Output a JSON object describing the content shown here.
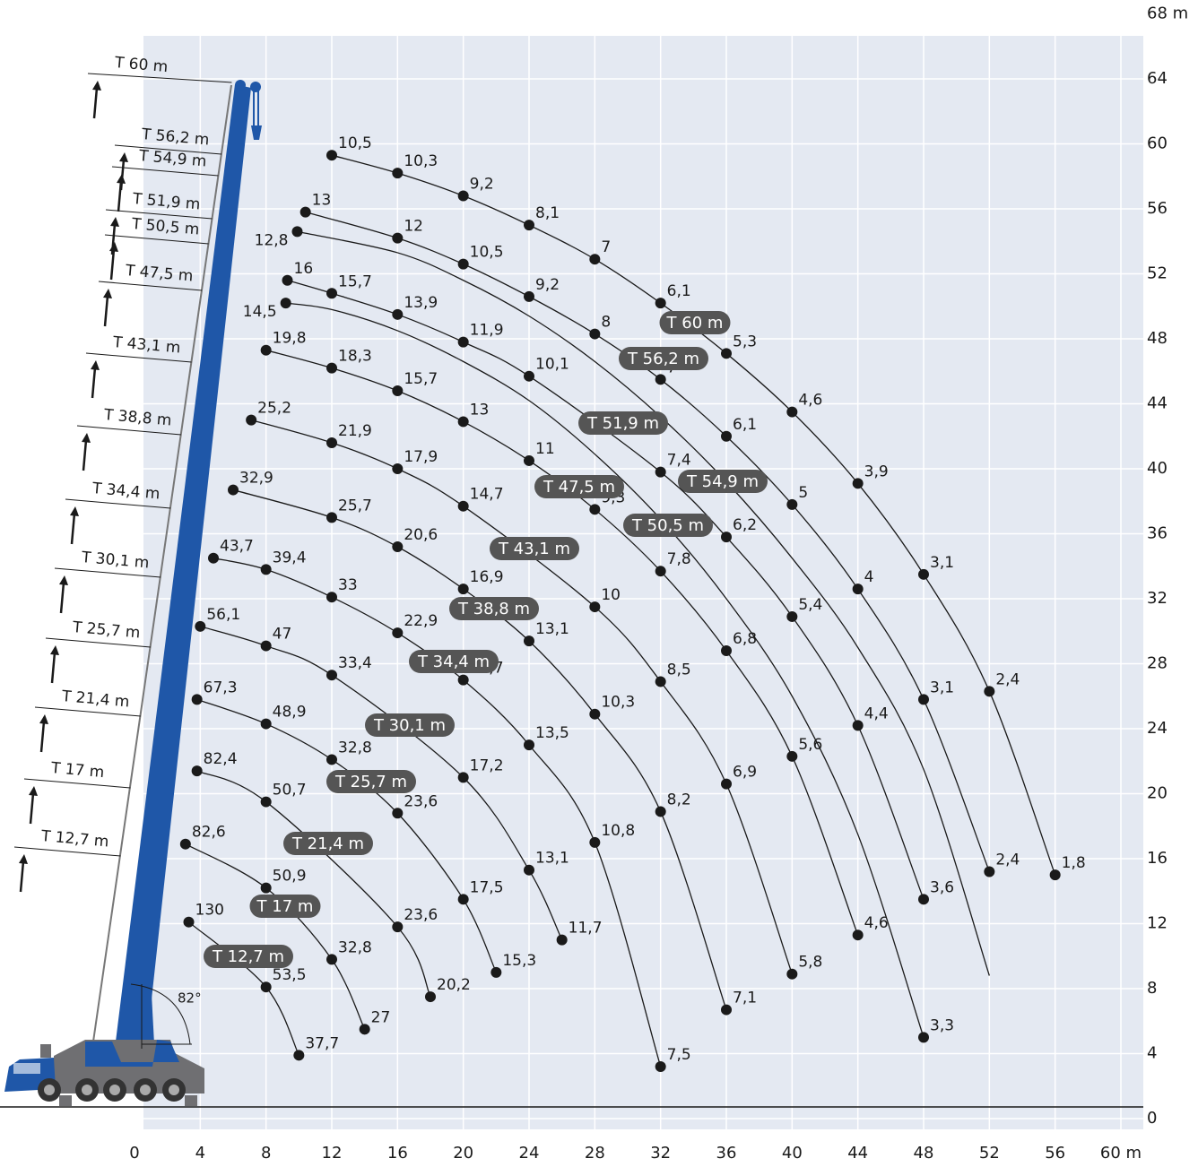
{
  "chart_data": {
    "type": "line",
    "color": "#1a1a1a",
    "grid": true,
    "xlim": [
      0,
      60
    ],
    "ylim": [
      0,
      68
    ],
    "xticks": [
      0,
      4,
      8,
      12,
      16,
      20,
      24,
      28,
      32,
      36,
      40,
      44,
      48,
      52,
      56,
      {
        "value": 60,
        "label": "60 m"
      }
    ],
    "yticks": [
      0,
      4,
      8,
      12,
      16,
      20,
      24,
      28,
      32,
      36,
      40,
      44,
      48,
      52,
      56,
      60,
      64,
      {
        "value": 68,
        "label": "68 m"
      }
    ],
    "annotation": "82°",
    "series": [
      {
        "name": "T 60 m",
        "x": [
          12,
          16,
          20,
          24,
          28,
          32,
          36,
          40,
          44,
          48,
          52,
          56
        ],
        "y": [
          59.3,
          58.2,
          56.8,
          55.0,
          52.9,
          50.2,
          47.1,
          43.5,
          39.1,
          33.5,
          26.3,
          15.0
        ],
        "values": [
          10.5,
          10.3,
          9.2,
          8.1,
          7,
          6.1,
          5.3,
          4.6,
          3.9,
          3.1,
          2.4,
          1.8
        ],
        "value_labels": [
          "10,5",
          "10,3",
          "9,2",
          "8,1",
          "7",
          "6,1",
          "5,3",
          "4,6",
          "3,9",
          "3,1",
          "2,4",
          "1,8"
        ]
      },
      {
        "name": "T 56,2 m",
        "x": [
          10.4,
          16,
          20,
          24,
          28,
          32,
          36,
          40,
          44,
          48,
          52
        ],
        "y": [
          55.8,
          54.2,
          52.6,
          50.6,
          48.3,
          45.5,
          42.0,
          37.8,
          32.6,
          25.8,
          15.2
        ],
        "values": [
          13,
          12,
          10.5,
          9.2,
          8,
          7,
          6.1,
          5,
          4,
          3.1,
          2.4
        ],
        "value_labels": [
          "13",
          "12",
          "10,5",
          "9,2",
          "8",
          "7",
          "6,1",
          "5",
          "4",
          "3,1",
          "2,4"
        ]
      },
      {
        "name": "T 54,9 m",
        "x": [
          9.9,
          16,
          20,
          24,
          28,
          32,
          36,
          40,
          44,
          48,
          52
        ],
        "y": [
          54.6,
          53.3,
          51.6,
          49.4,
          46.6,
          43.2,
          39.2,
          34.5,
          29.0,
          21.5,
          8.8
        ],
        "values": [
          12.8,
          null,
          null,
          null,
          null,
          null,
          null,
          null,
          null,
          null,
          null
        ],
        "value_labels": [
          "12,8",
          null,
          null,
          null,
          null,
          null,
          null,
          null,
          null,
          null,
          null
        ]
      },
      {
        "name": "T 51,9 m",
        "x": [
          9.3,
          12,
          16,
          20,
          24,
          32,
          36,
          40,
          44,
          48
        ],
        "y": [
          51.6,
          50.8,
          49.5,
          47.8,
          45.7,
          39.8,
          35.8,
          30.9,
          24.2,
          13.5
        ],
        "values": [
          16,
          15.7,
          13.9,
          11.9,
          10.1,
          7.4,
          6.2,
          5.4,
          4.4,
          3.6
        ],
        "value_labels": [
          "16",
          "15,7",
          "13,9",
          "11,9",
          "10,1",
          "7,4",
          "6,2",
          "5,4",
          "4,4",
          "3,6"
        ]
      },
      {
        "name": "T 50,5 m",
        "x": [
          9.2,
          12,
          16,
          20,
          24,
          28,
          32,
          36,
          40,
          44,
          48
        ],
        "y": [
          50.2,
          49.8,
          48.5,
          46.6,
          44.2,
          40.9,
          36.9,
          32.0,
          26.0,
          17.5,
          5.0
        ],
        "values": [
          14.5,
          null,
          null,
          null,
          null,
          null,
          null,
          null,
          null,
          null,
          3.3
        ],
        "value_labels": [
          "14,5",
          null,
          null,
          null,
          null,
          null,
          null,
          null,
          null,
          null,
          "3,3"
        ]
      },
      {
        "name": "T 47,5 m",
        "x": [
          8,
          12,
          16,
          20,
          24,
          28,
          32,
          36,
          40,
          44
        ],
        "y": [
          47.3,
          46.2,
          44.8,
          42.9,
          40.5,
          37.5,
          33.7,
          28.8,
          22.3,
          11.3
        ],
        "values": [
          19.8,
          18.3,
          15.7,
          13,
          11,
          9.3,
          7.8,
          6.8,
          5.6,
          4.6
        ],
        "value_labels": [
          "19,8",
          "18,3",
          "15,7",
          "13",
          "11",
          "9,3",
          "7,8",
          "6,8",
          "5,6",
          "4,6"
        ]
      },
      {
        "name": "T 43,1 m",
        "x": [
          7.1,
          12,
          16,
          20,
          28,
          32,
          36,
          40
        ],
        "y": [
          43.0,
          41.6,
          40.0,
          37.7,
          31.5,
          26.9,
          20.6,
          8.9
        ],
        "values": [
          25.2,
          21.9,
          17.9,
          14.7,
          10,
          8.5,
          6.9,
          5.8
        ],
        "value_labels": [
          "25,2",
          "21,9",
          "17,9",
          "14,7",
          "10",
          "8,5",
          "6,9",
          "5,8"
        ]
      },
      {
        "name": "T 38,8 m",
        "x": [
          6.0,
          12,
          16,
          20,
          24,
          28,
          32,
          36
        ],
        "y": [
          38.7,
          37.0,
          35.2,
          32.6,
          29.4,
          24.9,
          18.9,
          6.7
        ],
        "values": [
          32.9,
          25.7,
          20.6,
          16.9,
          13.1,
          10.3,
          8.2,
          7.1
        ],
        "value_labels": [
          "32,9",
          "25,7",
          "20,6",
          "16,9",
          "13,1",
          "10,3",
          "8,2",
          "7,1"
        ]
      },
      {
        "name": "T 34,4 m",
        "x": [
          4.8,
          8,
          12,
          16,
          20,
          24,
          28,
          32
        ],
        "y": [
          34.5,
          33.8,
          32.1,
          29.9,
          27.0,
          23.0,
          17.0,
          3.2
        ],
        "values": [
          43.7,
          39.4,
          33,
          22.9,
          16.7,
          13.5,
          10.8,
          7.5
        ],
        "value_labels": [
          "43,7",
          "39,4",
          "33",
          "22,9",
          "16,7",
          "13,5",
          "10,8",
          "7,5"
        ]
      },
      {
        "name": "T 30,1 m",
        "x": [
          4.0,
          8,
          12,
          20,
          24,
          26
        ],
        "y": [
          30.3,
          29.1,
          27.3,
          21.0,
          15.3,
          11.0
        ],
        "values": [
          56.1,
          47,
          33.4,
          17.2,
          13.1,
          11.7
        ],
        "value_labels": [
          "56,1",
          "47",
          "33,4",
          "17,2",
          "13,1",
          "11,7"
        ]
      },
      {
        "name": "T 25,7 m",
        "x": [
          3.8,
          8,
          12,
          16,
          20,
          22
        ],
        "y": [
          25.8,
          24.3,
          22.1,
          18.8,
          13.5,
          9.0
        ],
        "values": [
          67.3,
          48.9,
          32.8,
          23.6,
          17.5,
          15.3
        ],
        "value_labels": [
          "67,3",
          "48,9",
          "32,8",
          "23,6",
          "17,5",
          "15,3"
        ]
      },
      {
        "name": "T 21,4 m",
        "x": [
          3.8,
          8,
          16,
          18
        ],
        "y": [
          21.4,
          19.5,
          11.8,
          7.5
        ],
        "values": [
          82.4,
          50.7,
          23.6,
          20.2
        ],
        "value_labels": [
          "82,4",
          "50,7",
          "23,6",
          "20,2"
        ]
      },
      {
        "name": "T 17 m",
        "x": [
          3.1,
          8,
          12,
          14
        ],
        "y": [
          16.9,
          14.2,
          9.8,
          5.5
        ],
        "values": [
          82.6,
          50.9,
          32.8,
          27
        ],
        "value_labels": [
          "82,6",
          "50,9",
          "32,8",
          "27"
        ]
      },
      {
        "name": "T 12,7 m",
        "x": [
          3.3,
          8,
          10
        ],
        "y": [
          12.1,
          8.1,
          3.9
        ],
        "values": [
          130,
          53.5,
          37.7
        ],
        "value_labels": [
          "130",
          "53,5",
          "37,7"
        ]
      }
    ]
  }
}
